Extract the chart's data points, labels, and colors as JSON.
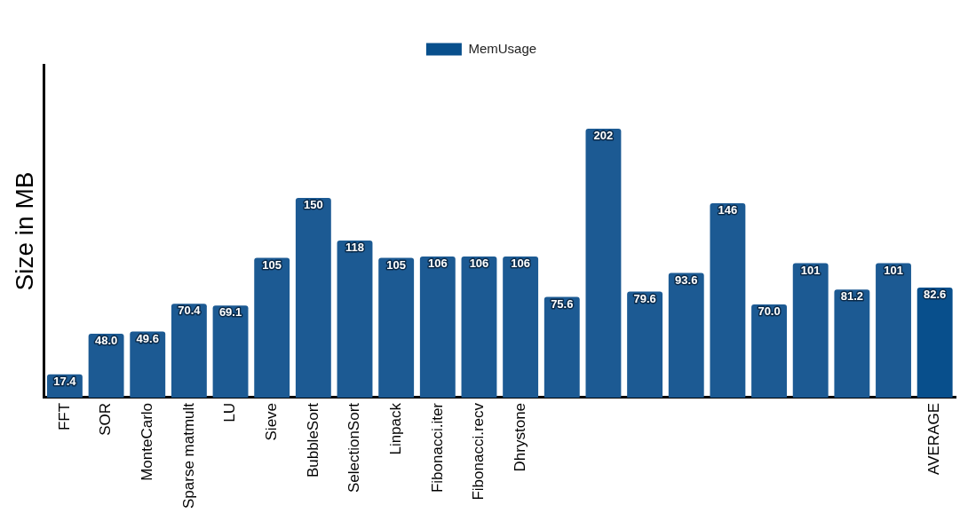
{
  "chart_data": {
    "type": "bar",
    "ylabel": "Size in MB",
    "legend": "top",
    "grid": false,
    "tick_labels": "x",
    "categories": [
      "FFT",
      "SOR",
      "MonteCarlo",
      "Sparse matmult",
      "LU",
      "Sieve",
      "BubbleSort",
      "SelectionSort",
      "Linpack",
      "Fibonacci.iter",
      "Fibonacci.recv",
      "Dhrystone",
      null,
      null,
      null,
      null,
      null,
      null,
      null,
      null,
      null,
      "AVERAGE"
    ],
    "series": [
      {
        "name": "MemUsage",
        "color": "#084f8c",
        "values": [
          17.4,
          48.0,
          49.6,
          70.4,
          69.1,
          105,
          150,
          118,
          105,
          106,
          106,
          106,
          75.6,
          202,
          79.6,
          93.6,
          146,
          70.0,
          101,
          81.2,
          101,
          82.6
        ],
        "value_labels": [
          "17.4",
          "48.0",
          "49.6",
          "70.4",
          "69.1",
          "105",
          "150",
          "118",
          "105",
          "106",
          "106",
          "106",
          "75.6",
          "202",
          "79.6",
          "93.6",
          "146",
          "70.0",
          "101",
          "81.2",
          "101",
          "82.6"
        ],
        "colors": [
          "#1c5a93",
          "#1c5a93",
          "#1c5a93",
          "#1c5a93",
          "#1c5a93",
          "#1c5a93",
          "#1c5a93",
          "#1c5a93",
          "#1c5a93",
          "#1c5a93",
          "#1c5a93",
          "#1c5a93",
          "#1c5a93",
          "#1c5a93",
          "#1c5a93",
          "#1c5a93",
          "#1c5a93",
          "#1c5a93",
          "#1c5a93",
          "#1c5a93",
          "#1c5a93",
          "#084f8c"
        ]
      }
    ]
  }
}
